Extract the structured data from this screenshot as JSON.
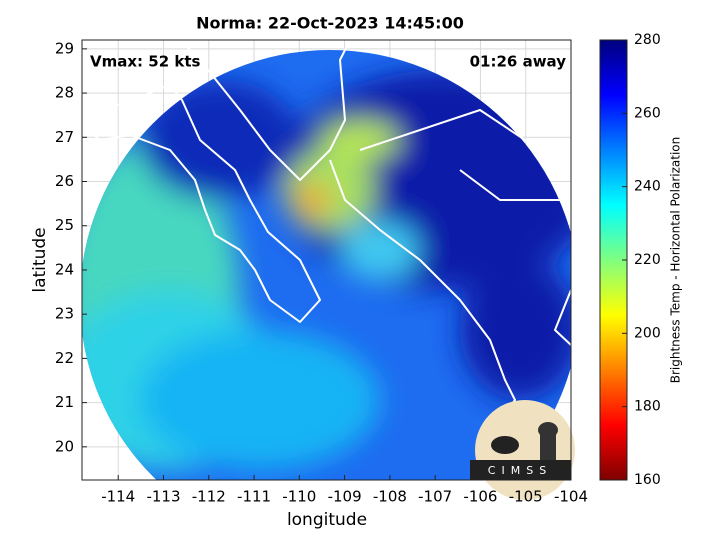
{
  "title": "Norma: 22-Oct-2023 14:45:00",
  "map": {
    "xlabel": "longitude",
    "ylabel": "latitude",
    "xlim": [
      -114.8,
      -104
    ],
    "ylim": [
      19.25,
      29.2
    ],
    "xticks": [
      -114,
      -113,
      -112,
      -111,
      -110,
      -109,
      -108,
      -107,
      -106,
      -105,
      -104
    ],
    "yticks": [
      20,
      21,
      22,
      23,
      24,
      25,
      26,
      27,
      28,
      29
    ],
    "grid": true
  },
  "annotations": {
    "vmax": "Vmax: 52 kts",
    "time_away": "01:26 away"
  },
  "colorbar": {
    "label": "Brightness Temp - Horizontal Polarization",
    "lim": [
      160,
      280
    ],
    "ticks": [
      160,
      180,
      200,
      220,
      240,
      260,
      280
    ],
    "colors": [
      "#7f0000",
      "#ff0000",
      "#ff8000",
      "#ffff00",
      "#80ff80",
      "#00ffff",
      "#0080ff",
      "#0000ff",
      "#00007f"
    ]
  },
  "logo": "CIMSS"
}
